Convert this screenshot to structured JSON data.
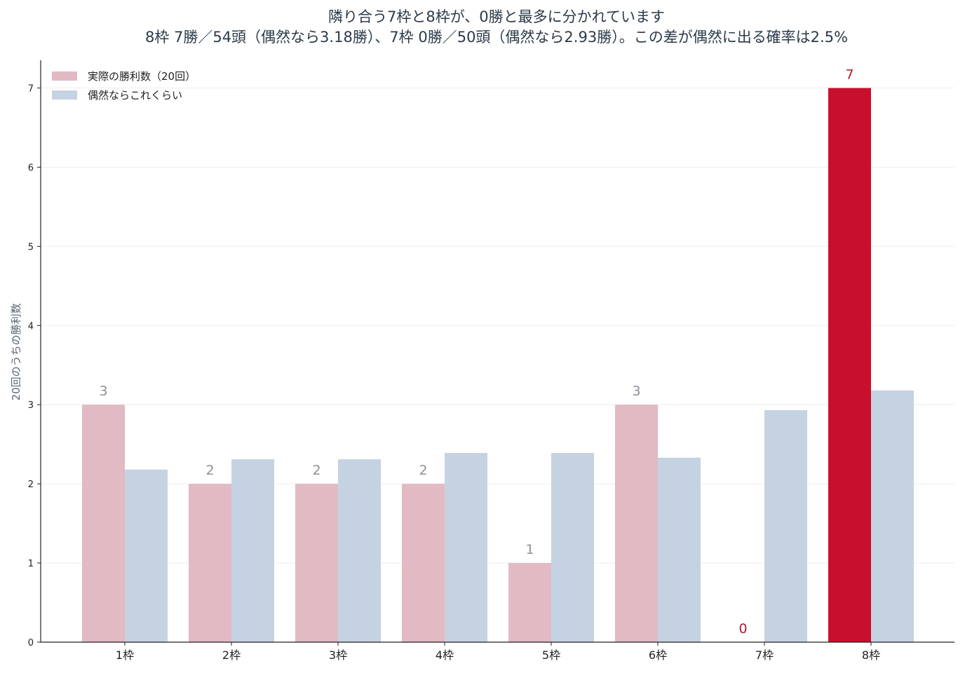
{
  "chart_data": {
    "type": "bar",
    "title": "隣り合う7枠と8枠が、0勝と最多に分かれています",
    "subtitle": "8枠 7勝／54頭（偶然なら3.18勝）、7枠 0勝／50頭（偶然なら2.93勝）。この差が偶然に出る確率は2.5%",
    "xlabel": "",
    "ylabel": "20回のうちの勝利数",
    "ylim": [
      0,
      7.35
    ],
    "yticks": [
      0,
      1,
      2,
      3,
      4,
      5,
      6,
      7
    ],
    "grid": true,
    "legend_position": "top-left",
    "categories": [
      "1枠",
      "2枠",
      "3枠",
      "4枠",
      "5枠",
      "6枠",
      "7枠",
      "8枠"
    ],
    "series": [
      {
        "name": "実際の勝利数（20回）",
        "values": [
          3,
          2,
          2,
          2,
          1,
          3,
          0,
          7
        ],
        "color": "#e2bac3",
        "highlight_index": 7,
        "highlight_color": "#c8102e",
        "data_labels": [
          "3",
          "2",
          "2",
          "2",
          "1",
          "3",
          "0",
          "7"
        ]
      },
      {
        "name": "偶然ならこれくらい",
        "values": [
          2.18,
          2.31,
          2.31,
          2.39,
          2.39,
          2.33,
          2.93,
          3.18
        ],
        "color": "#c5d2e2"
      }
    ],
    "label_colors": {
      "default": "#8c9199",
      "highlight": "#b01a34"
    }
  }
}
